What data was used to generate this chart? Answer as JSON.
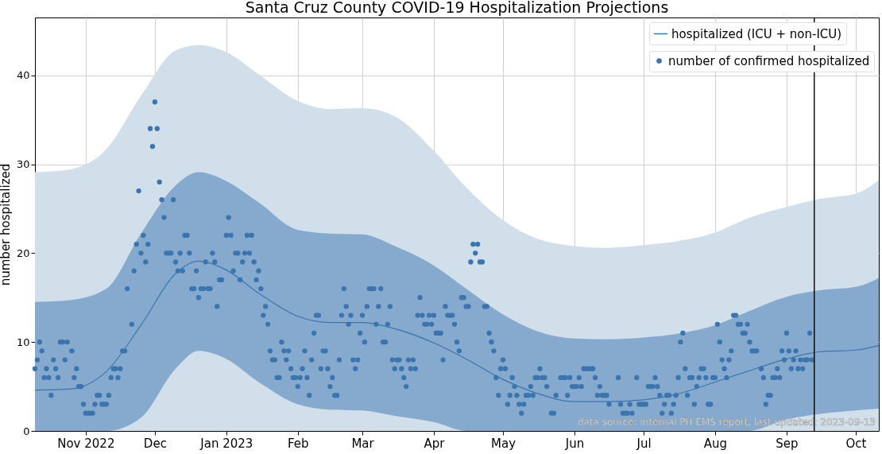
{
  "chart_data": {
    "type": "line",
    "title": "Santa Cruz County COVID-19 Hospitalization Projections",
    "ylabel": "number hospitalized",
    "xlim": [
      "2022-10-10",
      "2023-10-11"
    ],
    "xticks": [
      {
        "value": "2022-11-01",
        "label": "Nov 2022"
      },
      {
        "value": "2022-12-01",
        "label": "Dec"
      },
      {
        "value": "2023-01-01",
        "label": "Jan 2023"
      },
      {
        "value": "2023-02-01",
        "label": "Feb"
      },
      {
        "value": "2023-03-01",
        "label": "Mar"
      },
      {
        "value": "2023-04-01",
        "label": "Apr"
      },
      {
        "value": "2023-05-01",
        "label": "May"
      },
      {
        "value": "2023-06-01",
        "label": "Jun"
      },
      {
        "value": "2023-07-01",
        "label": "Jul"
      },
      {
        "value": "2023-08-01",
        "label": "Aug"
      },
      {
        "value": "2023-09-01",
        "label": "Sep"
      },
      {
        "value": "2023-10-01",
        "label": "Oct"
      }
    ],
    "ylim": [
      0,
      46.5
    ],
    "yticks": [
      0,
      10,
      20,
      30,
      40
    ],
    "grid": true,
    "legend": "top right",
    "annotations": [
      "data source: internal PH EMS report, last updated: 2023-09-13"
    ],
    "ref_lines": [
      {
        "axis": "x",
        "value": "2023-09-13",
        "color": "#000000"
      }
    ],
    "series": [
      {
        "type": "area",
        "color": "#d1dfeb",
        "x": [
          "2022-10-10",
          "2022-10-25",
          "2022-11-10",
          "2022-11-25",
          "2022-12-10",
          "2022-12-20",
          "2023-01-01",
          "2023-01-15",
          "2023-02-01",
          "2023-02-15",
          "2023-03-01",
          "2023-03-15",
          "2023-04-01",
          "2023-04-15",
          "2023-05-01",
          "2023-05-15",
          "2023-06-01",
          "2023-06-15",
          "2023-07-01",
          "2023-07-15",
          "2023-08-01",
          "2023-08-15",
          "2023-09-01",
          "2023-09-15",
          "2023-10-01",
          "2023-10-11"
        ],
        "values": [
          29.1,
          29.4,
          31.7,
          37.7,
          42.8,
          43.4,
          42.6,
          40.1,
          37.1,
          36.2,
          36.3,
          35.4,
          31.5,
          27.4,
          23.7,
          21.7,
          20.8,
          20.6,
          20.9,
          21.3,
          22.3,
          23.9,
          25.2,
          26.1,
          26.7,
          28.2
        ]
      },
      {
        "name": "hospitalized (ICU + non-ICU)",
        "color": "#3b75af",
        "x": [
          "2022-10-10",
          "2022-10-25",
          "2022-11-10",
          "2022-11-25",
          "2022-12-10",
          "2022-12-20",
          "2023-01-01",
          "2023-01-15",
          "2023-02-01",
          "2023-02-15",
          "2023-03-01",
          "2023-03-15",
          "2023-04-01",
          "2023-04-15",
          "2023-05-01",
          "2023-05-15",
          "2023-06-01",
          "2023-06-15",
          "2023-07-01",
          "2023-07-15",
          "2023-08-01",
          "2023-08-15",
          "2023-09-01",
          "2023-09-15",
          "2023-10-01",
          "2023-10-11"
        ],
        "values": [
          4.6,
          4.7,
          6.7,
          11.9,
          17.7,
          19.1,
          18.1,
          15.5,
          12.9,
          12.2,
          12.2,
          11.5,
          9.9,
          8.1,
          5.8,
          4.3,
          3.3,
          3.3,
          3.5,
          4.1,
          5.5,
          6.7,
          8.1,
          8.9,
          9.1,
          9.6
        ],
        "lower": [
          0,
          0,
          0,
          1.5,
          7.0,
          9.0,
          8.1,
          5.5,
          3.0,
          2.4,
          2.3,
          1.7,
          1.0,
          0,
          0,
          0,
          0,
          0,
          0,
          0,
          0,
          0,
          1.3,
          1.9,
          2.3,
          2.5
        ],
        "upper": [
          14.5,
          14.7,
          16.0,
          22.2,
          27.6,
          29.1,
          28.1,
          25.7,
          22.6,
          22.2,
          22.1,
          20.8,
          18.6,
          16.0,
          13.1,
          11.3,
          10.4,
          10.3,
          10.5,
          10.9,
          11.9,
          13.4,
          15.1,
          15.8,
          16.2,
          17.2
        ]
      },
      {
        "type": "scatter",
        "name": "number of confirmed hospitalized",
        "color": "#3b75af",
        "marker": "circle",
        "x": [
          "2022-10-10",
          "2022-10-11",
          "2022-10-12",
          "2022-10-13",
          "2022-10-14",
          "2022-10-15",
          "2022-10-16",
          "2022-10-17",
          "2022-10-18",
          "2022-10-19",
          "2022-10-20",
          "2022-10-21",
          "2022-10-22",
          "2022-10-23",
          "2022-10-24",
          "2022-10-26",
          "2022-10-27",
          "2022-10-28",
          "2022-10-29",
          "2022-10-30",
          "2022-10-31",
          "2022-11-01",
          "2022-11-02",
          "2022-11-03",
          "2022-11-04",
          "2022-11-05",
          "2022-11-06",
          "2022-11-07",
          "2022-11-08",
          "2022-11-09",
          "2022-11-10",
          "2022-11-11",
          "2022-11-12",
          "2022-11-13",
          "2022-11-14",
          "2022-11-15",
          "2022-11-16",
          "2022-11-17",
          "2022-11-18",
          "2022-11-19",
          "2022-11-21",
          "2022-11-22",
          "2022-11-23",
          "2022-11-24",
          "2022-11-25",
          "2022-11-26",
          "2022-11-27",
          "2022-11-28",
          "2022-11-29",
          "2022-11-30",
          "2022-12-01",
          "2022-12-02",
          "2022-12-03",
          "2022-12-04",
          "2022-12-05",
          "2022-12-06",
          "2022-12-07",
          "2022-12-08",
          "2022-12-09",
          "2022-12-10",
          "2022-12-11",
          "2022-12-12",
          "2022-12-13",
          "2022-12-14",
          "2022-12-15",
          "2022-12-16",
          "2022-12-17",
          "2022-12-18",
          "2022-12-19",
          "2022-12-20",
          "2022-12-21",
          "2022-12-22",
          "2022-12-23",
          "2022-12-24",
          "2022-12-25",
          "2022-12-26",
          "2022-12-27",
          "2022-12-28",
          "2022-12-29",
          "2022-12-30",
          "2023-01-01",
          "2023-01-02",
          "2023-01-03",
          "2023-01-04",
          "2023-01-05",
          "2023-01-06",
          "2023-01-07",
          "2023-01-08",
          "2023-01-09",
          "2023-01-10",
          "2023-01-11",
          "2023-01-12",
          "2023-01-13",
          "2023-01-14",
          "2023-01-15",
          "2023-01-16",
          "2023-01-17",
          "2023-01-18",
          "2023-01-19",
          "2023-01-20",
          "2023-01-21",
          "2023-01-22",
          "2023-01-23",
          "2023-01-24",
          "2023-01-25",
          "2023-01-26",
          "2023-01-27",
          "2023-01-28",
          "2023-01-29",
          "2023-01-30",
          "2023-01-31",
          "2023-02-01",
          "2023-02-02",
          "2023-02-03",
          "2023-02-04",
          "2023-02-05",
          "2023-02-06",
          "2023-02-07",
          "2023-02-08",
          "2023-02-09",
          "2023-02-10",
          "2023-02-11",
          "2023-02-12",
          "2023-02-13",
          "2023-02-14",
          "2023-02-15",
          "2023-02-16",
          "2023-02-17",
          "2023-02-18",
          "2023-02-19",
          "2023-02-20",
          "2023-02-21",
          "2023-02-22",
          "2023-02-23",
          "2023-02-24",
          "2023-02-25",
          "2023-02-26",
          "2023-02-27",
          "2023-02-28",
          "2023-03-01",
          "2023-03-02",
          "2023-03-03",
          "2023-03-04",
          "2023-03-05",
          "2023-03-06",
          "2023-03-07",
          "2023-03-08",
          "2023-03-09",
          "2023-03-10",
          "2023-03-11",
          "2023-03-12",
          "2023-03-13",
          "2023-03-14",
          "2023-03-15",
          "2023-03-16",
          "2023-03-17",
          "2023-03-18",
          "2023-03-19",
          "2023-03-20",
          "2023-03-21",
          "2023-03-22",
          "2023-03-23",
          "2023-03-24",
          "2023-03-25",
          "2023-03-26",
          "2023-03-27",
          "2023-03-28",
          "2023-03-29",
          "2023-03-30",
          "2023-03-31",
          "2023-04-01",
          "2023-04-02",
          "2023-04-03",
          "2023-04-04",
          "2023-04-05",
          "2023-04-06",
          "2023-04-07",
          "2023-04-08",
          "2023-04-09",
          "2023-04-10",
          "2023-04-11",
          "2023-04-12",
          "2023-04-13",
          "2023-04-14",
          "2023-04-15",
          "2023-04-16",
          "2023-04-17",
          "2023-04-18",
          "2023-04-19",
          "2023-04-20",
          "2023-04-21",
          "2023-04-22",
          "2023-04-23",
          "2023-04-24",
          "2023-04-25",
          "2023-04-26",
          "2023-04-27",
          "2023-04-28",
          "2023-04-29",
          "2023-04-30",
          "2023-05-01",
          "2023-05-02",
          "2023-05-03",
          "2023-05-04",
          "2023-05-05",
          "2023-05-06",
          "2023-05-07",
          "2023-05-08",
          "2023-05-09",
          "2023-05-10",
          "2023-05-11",
          "2023-05-12",
          "2023-05-13",
          "2023-05-14",
          "2023-05-15",
          "2023-05-16",
          "2023-05-17",
          "2023-05-18",
          "2023-05-19",
          "2023-05-20",
          "2023-05-22",
          "2023-05-23",
          "2023-05-24",
          "2023-05-26",
          "2023-05-27",
          "2023-05-28",
          "2023-05-29",
          "2023-05-30",
          "2023-05-31",
          "2023-06-01",
          "2023-06-02",
          "2023-06-03",
          "2023-06-04",
          "2023-06-05",
          "2023-06-06",
          "2023-06-07",
          "2023-06-08",
          "2023-06-09",
          "2023-06-10",
          "2023-06-11",
          "2023-06-12",
          "2023-06-13",
          "2023-06-14",
          "2023-06-15",
          "2023-06-16",
          "2023-06-20",
          "2023-06-21",
          "2023-06-22",
          "2023-06-23",
          "2023-06-24",
          "2023-06-25",
          "2023-06-26",
          "2023-06-28",
          "2023-06-29",
          "2023-06-30",
          "2023-07-01",
          "2023-07-02",
          "2023-07-03",
          "2023-07-04",
          "2023-07-05",
          "2023-07-06",
          "2023-07-07",
          "2023-07-08",
          "2023-07-09",
          "2023-07-10",
          "2023-07-11",
          "2023-07-12",
          "2023-07-13",
          "2023-07-14",
          "2023-07-15",
          "2023-07-16",
          "2023-07-17",
          "2023-07-18",
          "2023-07-19",
          "2023-07-20",
          "2023-07-21",
          "2023-07-22",
          "2023-07-23",
          "2023-07-24",
          "2023-07-25",
          "2023-07-26",
          "2023-07-27",
          "2023-07-28",
          "2023-07-29",
          "2023-07-30",
          "2023-07-31",
          "2023-08-01",
          "2023-08-02",
          "2023-08-03",
          "2023-08-04",
          "2023-08-05",
          "2023-08-06",
          "2023-08-07",
          "2023-08-08",
          "2023-08-09",
          "2023-08-10",
          "2023-08-11",
          "2023-08-12",
          "2023-08-13",
          "2023-08-14",
          "2023-08-15",
          "2023-08-16",
          "2023-08-17",
          "2023-08-18",
          "2023-08-19",
          "2023-08-21",
          "2023-08-22",
          "2023-08-23",
          "2023-08-24",
          "2023-08-25",
          "2023-08-26",
          "2023-08-27",
          "2023-08-28",
          "2023-08-29",
          "2023-08-30",
          "2023-08-31",
          "2023-09-01",
          "2023-09-02",
          "2023-09-03",
          "2023-09-04",
          "2023-09-05",
          "2023-09-06",
          "2023-09-07",
          "2023-09-08",
          "2023-09-09",
          "2023-09-10",
          "2023-09-11",
          "2023-09-12"
        ],
        "values": [
          7,
          8,
          10,
          9,
          6,
          7,
          6,
          4,
          8,
          7,
          6,
          10,
          10,
          8,
          10,
          9,
          6,
          7,
          5,
          5,
          3,
          2,
          2,
          2,
          2,
          3,
          4,
          4,
          3,
          3,
          3,
          4,
          6,
          7,
          7,
          6,
          7,
          9,
          9,
          16,
          12,
          18,
          21,
          27,
          20,
          22,
          19,
          21,
          34,
          32,
          37,
          34,
          28,
          26,
          24,
          20,
          20,
          20,
          26,
          19,
          18,
          20,
          18,
          22,
          22,
          20,
          16,
          16,
          18,
          15,
          16,
          16,
          19,
          16,
          16,
          20,
          19,
          14,
          17,
          17,
          22,
          24,
          22,
          18,
          20,
          20,
          17,
          19,
          20,
          22,
          20,
          22,
          19,
          17,
          18,
          16,
          13,
          14,
          12,
          9,
          8,
          8,
          6,
          6,
          10,
          9,
          8,
          9,
          7,
          6,
          6,
          5,
          6,
          7,
          9,
          6,
          4,
          8,
          11,
          13,
          13,
          7,
          9,
          9,
          7,
          5,
          6,
          4,
          4,
          8,
          13,
          16,
          14,
          12,
          13,
          8,
          7,
          8,
          11,
          13,
          10,
          14,
          16,
          16,
          16,
          12,
          14,
          16,
          10,
          10,
          12,
          14,
          8,
          7,
          8,
          8,
          7,
          6,
          5,
          8,
          7,
          8,
          7,
          13,
          15,
          13,
          12,
          12,
          13,
          12,
          13,
          11,
          11,
          11,
          8,
          14,
          13,
          13,
          13,
          12,
          10,
          9,
          15,
          15,
          14,
          14,
          19,
          21,
          20,
          21,
          19,
          19,
          14,
          14,
          11,
          10,
          9,
          6,
          4,
          7,
          8,
          7,
          3,
          4,
          6,
          5,
          4,
          3,
          2,
          3,
          4,
          4,
          5,
          4,
          6,
          6,
          7,
          6,
          6,
          5,
          2,
          2,
          4,
          6,
          6,
          6,
          4,
          6,
          5,
          5,
          5,
          6,
          5,
          7,
          7,
          7,
          7,
          7,
          6,
          4,
          5,
          4,
          4,
          4,
          3,
          6,
          3,
          2,
          2,
          2,
          3,
          2,
          6,
          3,
          3,
          3,
          3,
          5,
          5,
          5,
          6,
          5,
          4,
          2,
          3,
          4,
          4,
          2,
          3,
          4,
          6,
          10,
          11,
          7,
          4,
          6,
          6,
          3,
          5,
          6,
          7,
          7,
          6,
          3,
          3,
          6,
          6,
          12,
          10,
          8,
          7,
          6,
          8,
          9,
          13,
          13,
          12,
          12,
          11,
          11,
          12,
          10,
          9,
          9,
          9,
          7,
          6,
          3,
          4,
          4,
          6,
          6,
          7,
          6,
          9,
          8,
          11,
          9,
          7,
          8,
          9,
          7,
          8,
          7,
          8,
          8,
          11,
          8
        ]
      }
    ]
  }
}
